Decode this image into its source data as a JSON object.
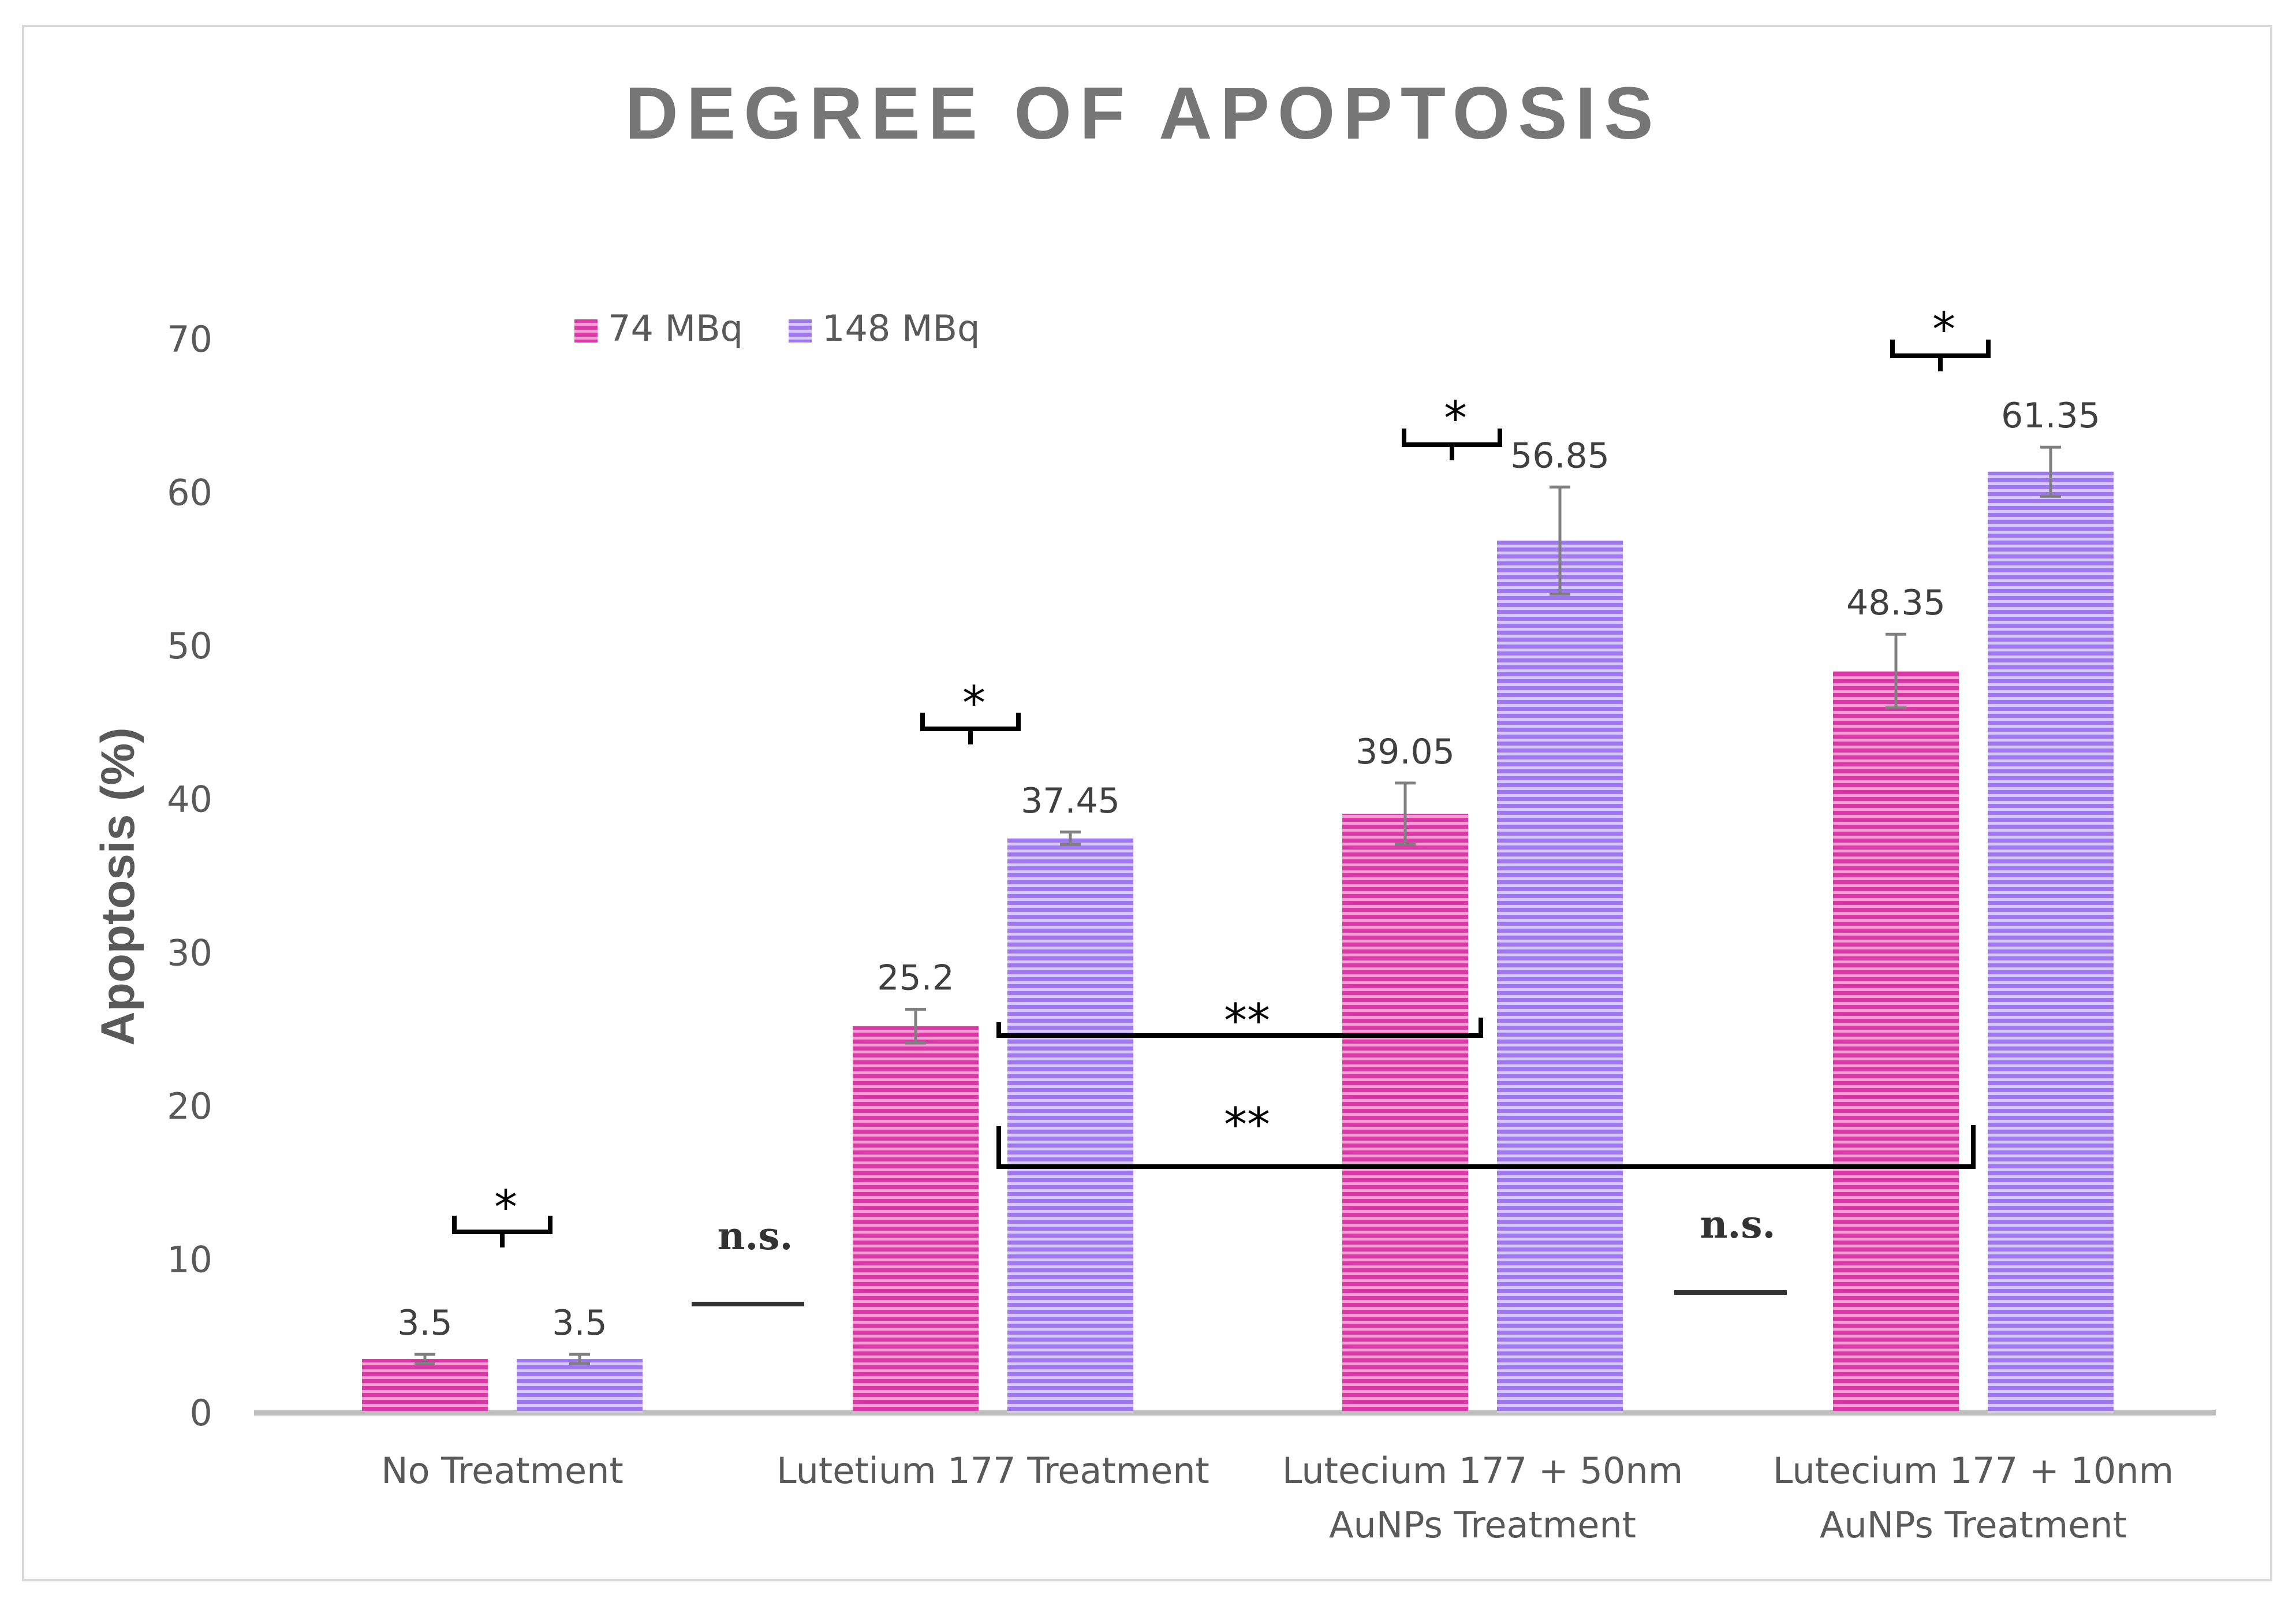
{
  "chart_data": {
    "type": "bar",
    "title": "DEGREE OF APOPTOSIS",
    "xlabel": "",
    "ylabel": "Apoptosis (%)",
    "ylim": [
      0,
      70
    ],
    "yticks": [
      "0",
      "10",
      "20",
      "30",
      "40",
      "50",
      "60",
      "70"
    ],
    "ytick_values": [
      0,
      10,
      20,
      30,
      40,
      50,
      60,
      70
    ],
    "grid": false,
    "legend_position": "top-left",
    "categories": [
      [
        "No Treatment"
      ],
      [
        "Lutetium 177 Treatment"
      ],
      [
        "Lutecium 177 + 50nm",
        "AuNPs Treatment"
      ],
      [
        "Lutecium 177 + 10nm",
        "AuNPs Treatment"
      ]
    ],
    "series": [
      {
        "name": "74 MBq",
        "color": "#d63aa4",
        "values": [
          3.5,
          25.2,
          39.05,
          48.35
        ],
        "labels": [
          "3.5",
          "25.2",
          "39.05",
          "48.35"
        ],
        "error": [
          0.3,
          1.1,
          2.0,
          2.4
        ]
      },
      {
        "name": "148 MBq",
        "color": "#9d79ea",
        "values": [
          3.5,
          37.45,
          56.85,
          61.35
        ],
        "labels": [
          "3.5",
          "37.45",
          "56.85",
          "61.35"
        ],
        "error": [
          0.3,
          0.4,
          3.5,
          1.6
        ]
      }
    ],
    "annotations": {
      "within_group_star": "*",
      "between_group_double_star": "**",
      "not_significant": "n.s."
    }
  }
}
